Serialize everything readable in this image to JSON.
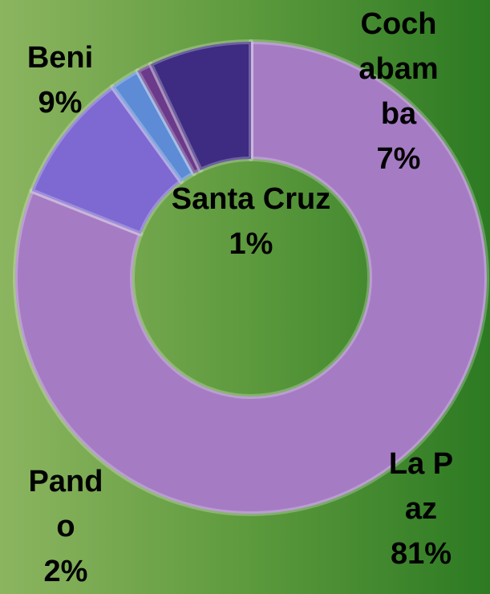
{
  "chart_data": {
    "type": "donut",
    "categories": [
      "La Paz",
      "Beni",
      "Pando",
      "Santa Cruz",
      "Cochabamba"
    ],
    "values": [
      81,
      9,
      2,
      1,
      7
    ],
    "value_labels": [
      "81%",
      "9%",
      "2%",
      "1%",
      "7%"
    ],
    "colors": [
      "#a57cc3",
      "#7d69d1",
      "#5d8bd6",
      "#6b3a8b",
      "#3e2b82"
    ]
  }
}
